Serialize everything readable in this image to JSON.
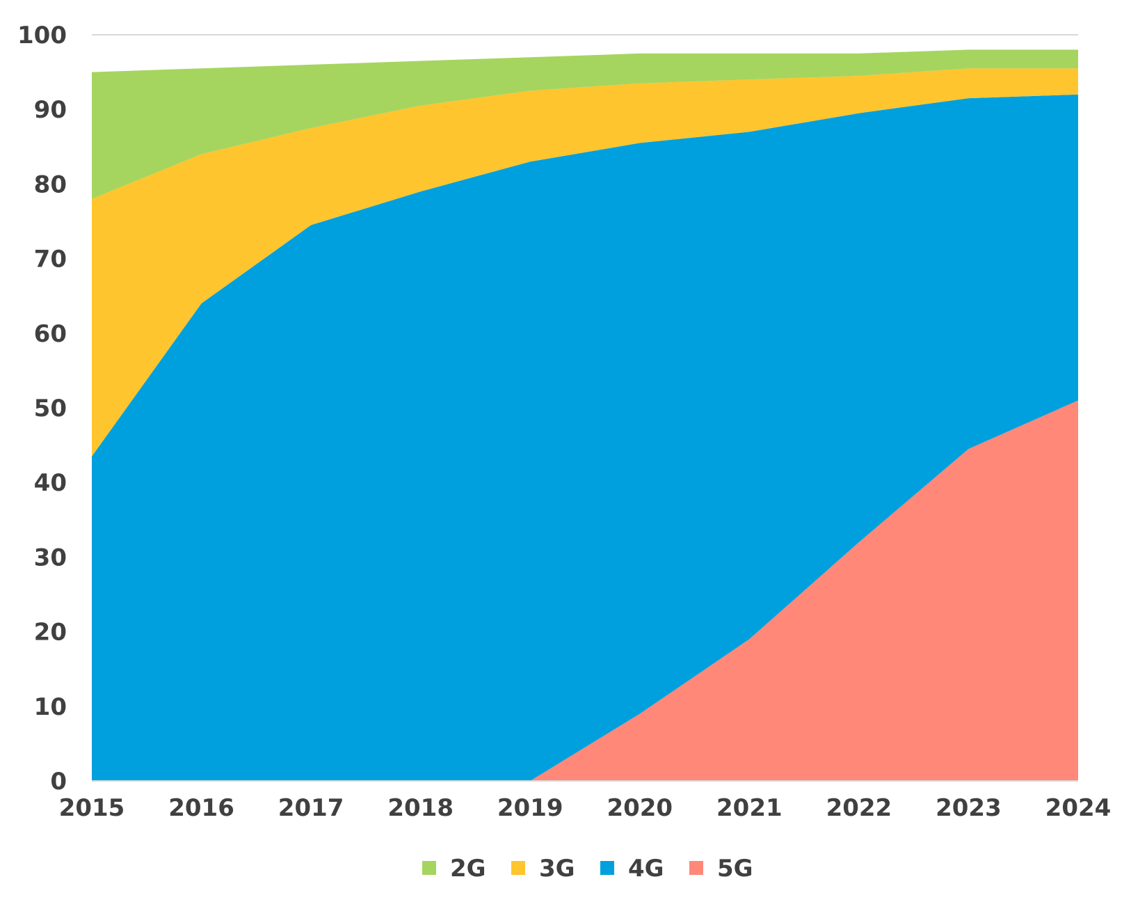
{
  "chart_data": {
    "type": "area",
    "stacked": true,
    "x": [
      "2015",
      "2016",
      "2017",
      "2018",
      "2019",
      "2020",
      "2021",
      "2022",
      "2023",
      "2024"
    ],
    "series": [
      {
        "name": "5G",
        "color": "#FF8878",
        "values": [
          0,
          0,
          0,
          0,
          0,
          9,
          19,
          32,
          44.5,
          51
        ]
      },
      {
        "name": "4G",
        "color": "#00A0DE",
        "values": [
          43.5,
          64,
          74.5,
          79,
          83,
          76.5,
          68,
          57.5,
          47,
          41
        ]
      },
      {
        "name": "3G",
        "color": "#FFC52E",
        "values": [
          34.5,
          20,
          13,
          11.5,
          9.5,
          8,
          7,
          5,
          4,
          3.5
        ]
      },
      {
        "name": "2G",
        "color": "#A5D55F",
        "values": [
          17,
          11.5,
          8.5,
          6,
          4.5,
          4,
          3.5,
          3,
          2.5,
          2.5
        ]
      }
    ],
    "ylim": [
      0,
      100
    ],
    "yticks": [
      "0",
      "10",
      "20",
      "30",
      "40",
      "50",
      "60",
      "70",
      "80",
      "90",
      "100"
    ],
    "grid": {
      "top_line": true,
      "axis_color": "#D9D9D9"
    },
    "legend": {
      "placement": "bottom",
      "items": [
        {
          "name": "2G",
          "color": "#A5D55F"
        },
        {
          "name": "3G",
          "color": "#FFC52E"
        },
        {
          "name": "4G",
          "color": "#00A0DE"
        },
        {
          "name": "5G",
          "color": "#FF8878"
        }
      ]
    }
  }
}
